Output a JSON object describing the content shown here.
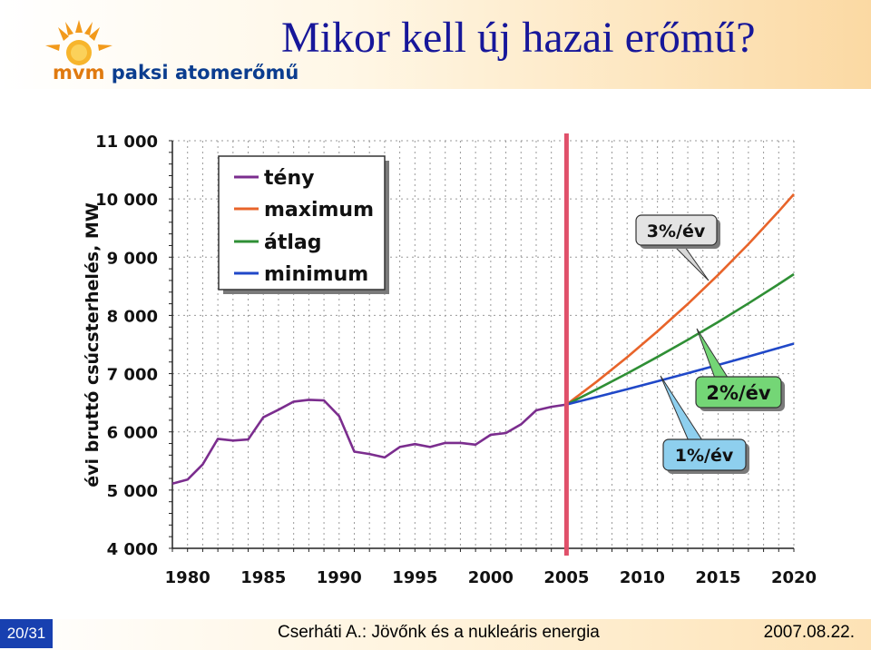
{
  "header": {
    "title": "Mikor kell új hazai erőmű?",
    "logo_prefix": "mvm",
    "logo_text": "paksi atomerőmű",
    "logo_icon": "sun-icon",
    "colors": {
      "title": "#17179a",
      "logo_blue": "#0b3d8f",
      "logo_orange": "#e07a10"
    }
  },
  "footer": {
    "page": "20/31",
    "author": "Cserháti A.: Jövőnk és a nukleáris energia",
    "date": "2007.08.22."
  },
  "chart_data": {
    "type": "line",
    "ylabel": "évi bruttó csúcsterhelés, MW",
    "xlabel": "",
    "xlim": [
      1979,
      2020
    ],
    "ylim": [
      4000,
      11000
    ],
    "x_ticks": [
      "1980",
      "1985",
      "1990",
      "1995",
      "2000",
      "2005",
      "2010",
      "2015",
      "2020"
    ],
    "y_ticks": [
      "4 000",
      "5 000",
      "6 000",
      "7 000",
      "8 000",
      "9 000",
      "10 000",
      "11 000"
    ],
    "grid": true,
    "legend_position": "top-left",
    "vertical_marker_x": 2005,
    "series": [
      {
        "name": "tény",
        "color": "#7b2d8e",
        "x": [
          1979,
          1980,
          1981,
          1982,
          1983,
          1984,
          1985,
          1986,
          1987,
          1988,
          1989,
          1990,
          1991,
          1992,
          1993,
          1994,
          1995,
          1996,
          1997,
          1998,
          1999,
          2000,
          2001,
          2002,
          2003,
          2004,
          2005
        ],
        "y": [
          5110,
          5180,
          5440,
          5880,
          5850,
          5870,
          6250,
          6380,
          6520,
          6550,
          6540,
          6270,
          5660,
          5620,
          5560,
          5740,
          5790,
          5740,
          5810,
          5810,
          5780,
          5950,
          5980,
          6130,
          6370,
          6430,
          6470
        ]
      },
      {
        "name": "maximum",
        "color": "#e8642a",
        "x": [
          2005,
          2007,
          2009,
          2011,
          2013,
          2015,
          2017,
          2019,
          2020
        ],
        "y": [
          6470,
          6864,
          7282,
          7726,
          8196,
          8695,
          9225,
          9787,
          10081
        ]
      },
      {
        "name": "átlag",
        "color": "#2f8f35",
        "x": [
          2005,
          2007,
          2009,
          2011,
          2013,
          2015,
          2017,
          2019,
          2020
        ],
        "y": [
          6470,
          6731,
          7003,
          7286,
          7580,
          7887,
          8206,
          8537,
          8708
        ]
      },
      {
        "name": "minimum",
        "color": "#2048c8",
        "x": [
          2005,
          2007,
          2009,
          2011,
          2013,
          2015,
          2017,
          2019,
          2020
        ],
        "y": [
          6470,
          6600,
          6733,
          6869,
          7008,
          7149,
          7293,
          7440,
          7515
        ]
      }
    ],
    "annotations": [
      {
        "text": "3%/év",
        "series": "maximum"
      },
      {
        "text": "2%/év",
        "series": "átlag"
      },
      {
        "text": "1%/év",
        "series": "minimum"
      }
    ]
  }
}
